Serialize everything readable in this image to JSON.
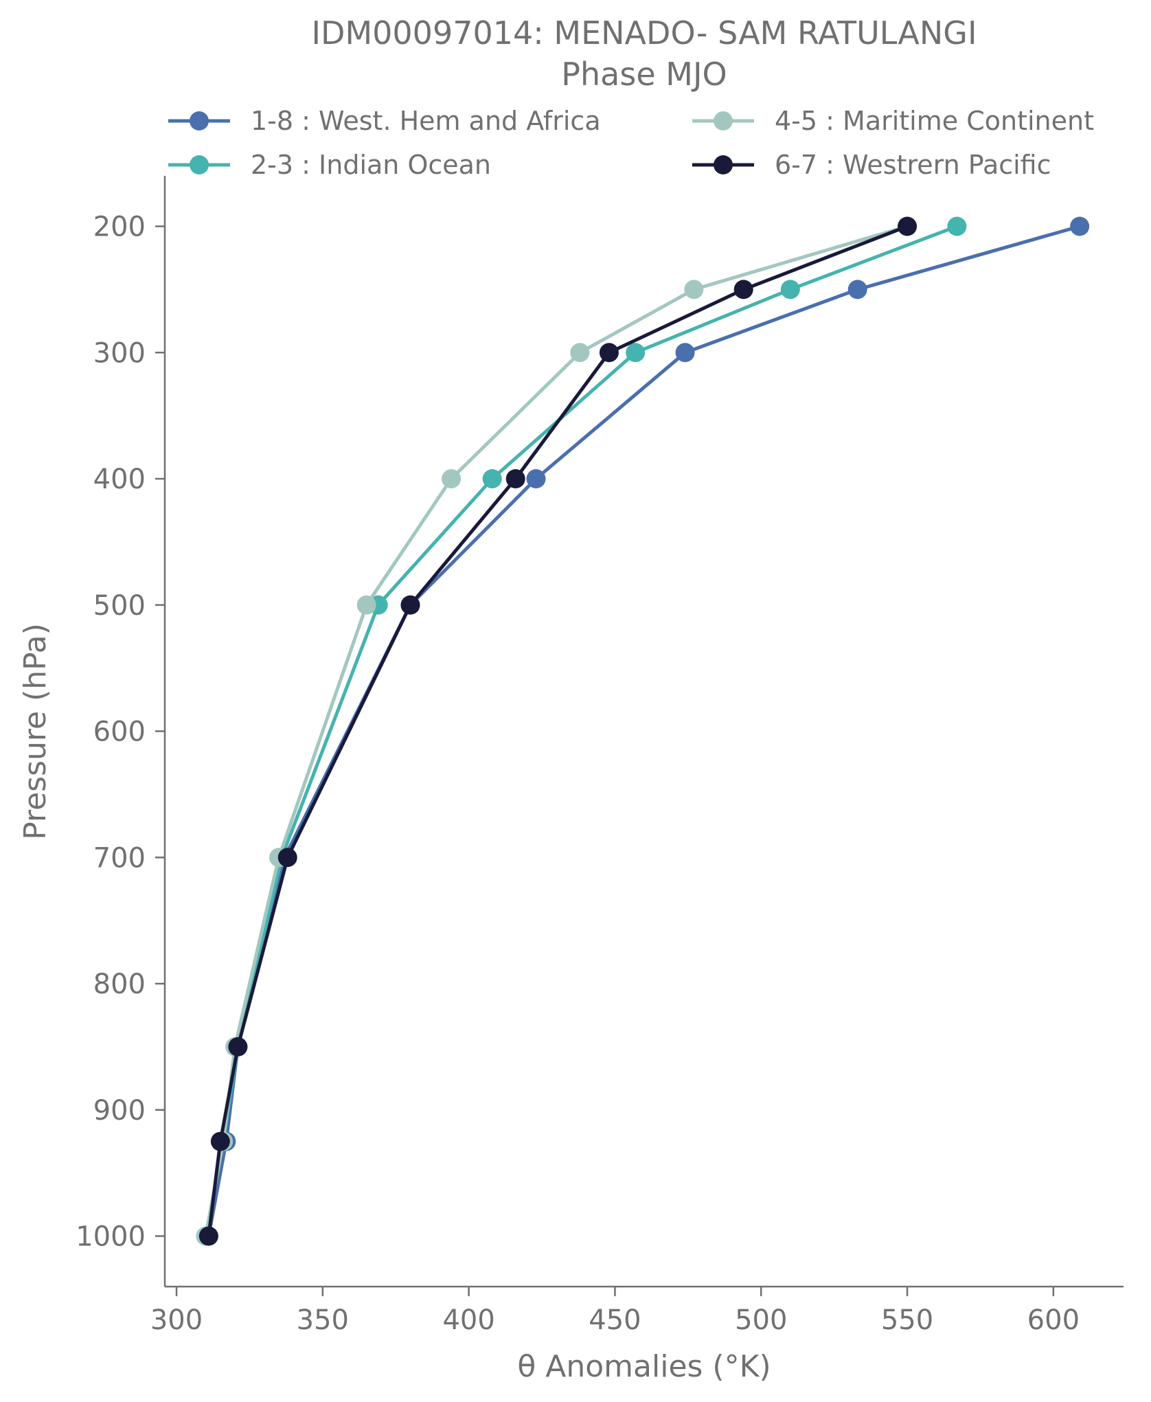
{
  "chart_data": {
    "type": "line",
    "title": "IDM00097014: MENADO- SAM RATULANGI",
    "subtitle": "Phase MJO",
    "xlabel": "θ Anomalies (°K)",
    "ylabel": "Pressure (hPa)",
    "xlim": [
      296,
      624
    ],
    "ylim": [
      1040,
      160
    ],
    "y_inverted": true,
    "grid": false,
    "legend_position": "top",
    "legend_columns": 2,
    "x_ticks": [
      300,
      350,
      400,
      450,
      500,
      550,
      600
    ],
    "y_ticks": [
      200,
      300,
      400,
      500,
      600,
      700,
      800,
      900,
      1000
    ],
    "pressure_levels": [
      1000,
      925,
      850,
      700,
      500,
      400,
      300,
      250,
      200
    ],
    "series": [
      {
        "name": "1-8 : West. Hem and Africa",
        "color": "#4a6fad",
        "x": [
          311,
          317,
          321,
          337,
          380,
          423,
          474,
          533,
          609
        ]
      },
      {
        "name": "2-3 : Indian Ocean",
        "color": "#45b3ae",
        "x": [
          310,
          316,
          321,
          336,
          369,
          408,
          457,
          510,
          567
        ]
      },
      {
        "name": "4-5 : Maritime Continent",
        "color": "#a3c7c0",
        "x": [
          310,
          316,
          320,
          335,
          365,
          394,
          438,
          477,
          550
        ]
      },
      {
        "name": "6-7 : Westrern Pacific",
        "color": "#191a3a",
        "x": [
          311,
          315,
          321,
          338,
          380,
          416,
          448,
          494,
          550
        ]
      }
    ]
  }
}
